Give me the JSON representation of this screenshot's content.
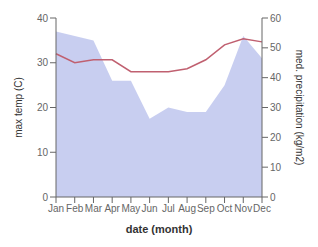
{
  "chart_data": {
    "type": "line",
    "categories": [
      "Jan",
      "Feb",
      "Mar",
      "Apr",
      "May",
      "Jun",
      "Jul",
      "Aug",
      "Sep",
      "Oct",
      "Nov",
      "Dec"
    ],
    "series": [
      {
        "type": "area",
        "color": "#aab4e8",
        "values": [
          37,
          36,
          35,
          26,
          26,
          17.5,
          20,
          19,
          19,
          25,
          36,
          31
        ]
      },
      {
        "type": "line",
        "color": "#c06070",
        "axis": "y2",
        "values": [
          48,
          45,
          46,
          46,
          42,
          42,
          42,
          43,
          46,
          51,
          53,
          52
        ]
      }
    ],
    "xlabel": "date (month)",
    "ylabel": "max temp (C)",
    "y2label": "med. precipitation (kg/m2)",
    "ylim": [
      0,
      40
    ],
    "yticks": [
      0,
      10,
      20,
      30,
      40
    ],
    "y2lim": [
      0,
      60
    ],
    "y2ticks": [
      0,
      10,
      20,
      30,
      40,
      50,
      60
    ],
    "grid": false
  }
}
